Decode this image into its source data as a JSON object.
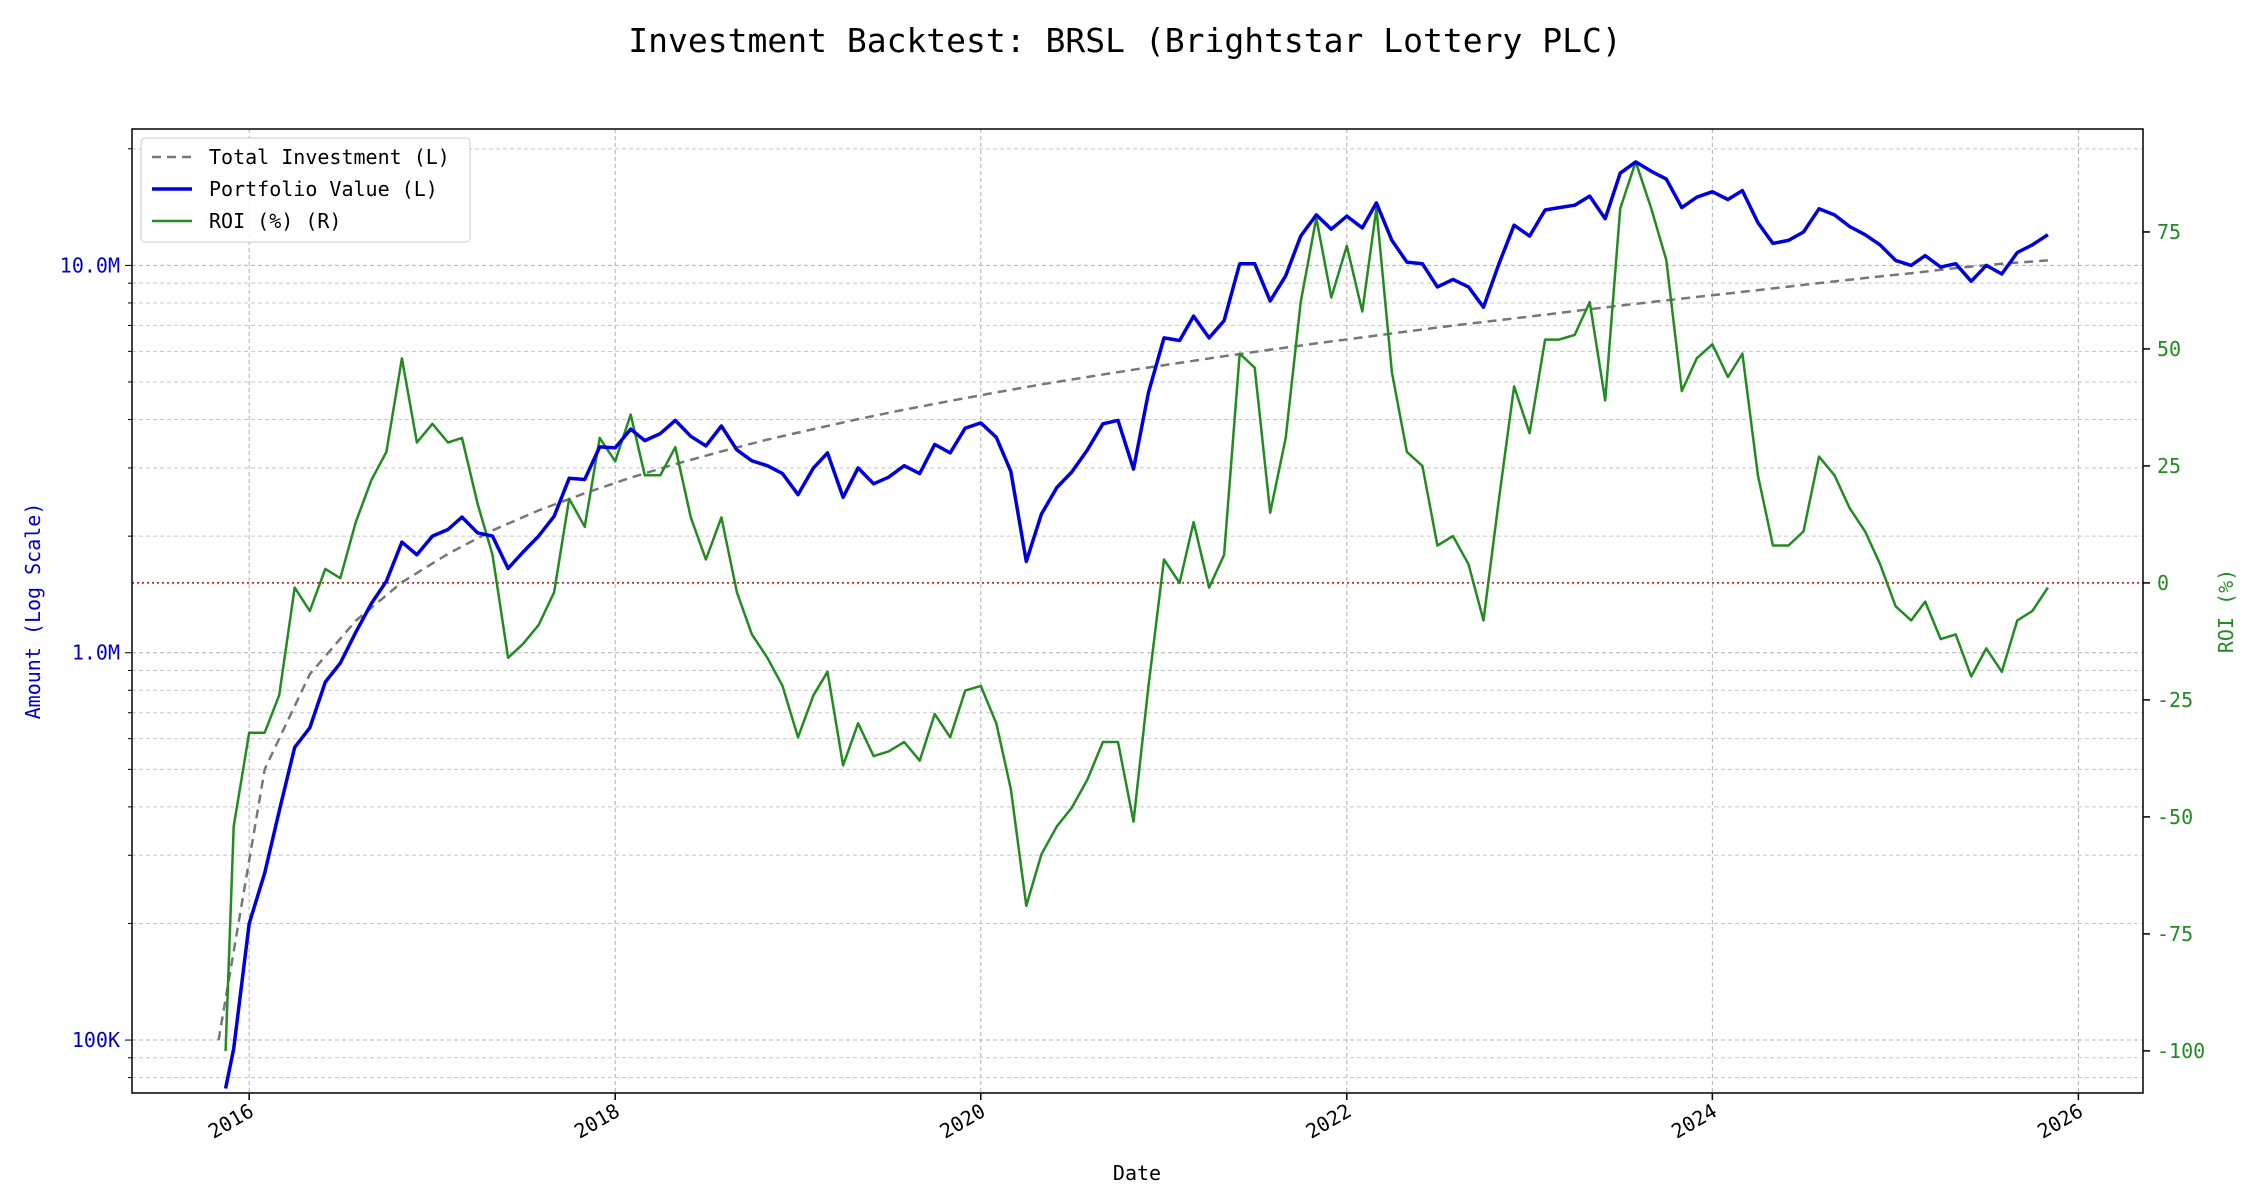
{
  "chart_data": {
    "type": "line",
    "title": "Investment Backtest: BRSL (Brightstar Lottery PLC)",
    "xlabel": "Date",
    "ylabel_left": "Amount (Log Scale)",
    "ylabel_right": "ROI (%)",
    "x_ticks": [
      "2016",
      "2018",
      "2020",
      "2022",
      "2024",
      "2026"
    ],
    "y_left_ticks": [
      {
        "value": 100000,
        "label": "100K"
      },
      {
        "value": 1000000,
        "label": "1.0M"
      },
      {
        "value": 10000000,
        "label": "10.0M"
      }
    ],
    "y_right_ticks": [
      -100,
      -75,
      -50,
      -25,
      0,
      25,
      50,
      75
    ],
    "x_range": [
      "2015-05-12",
      "2026-05-10"
    ],
    "y_left_range": [
      73000,
      22500000
    ],
    "y_left_scale": "log",
    "y_right_range": [
      -109,
      97
    ],
    "grid": true,
    "legend_position": "top-left",
    "reference_line": {
      "axis": "right",
      "value": 0,
      "color": "#cc0000",
      "style": "dotted"
    },
    "series": [
      {
        "name": "Total Investment (L)",
        "axis": "left",
        "color": "#777777",
        "style": "dashed",
        "x": [
          "2015-11-01",
          "2016-02-01",
          "2016-05-01",
          "2016-08-01",
          "2016-11-01",
          "2017-02-01",
          "2017-05-01",
          "2017-08-01",
          "2017-11-01",
          "2018-02-01",
          "2018-05-01",
          "2018-08-01",
          "2018-11-01",
          "2019-02-01",
          "2019-05-01",
          "2019-08-01",
          "2019-11-01",
          "2020-02-01",
          "2020-05-01",
          "2020-08-01",
          "2020-11-01",
          "2021-02-01",
          "2021-05-01",
          "2021-08-01",
          "2021-11-01",
          "2022-02-01",
          "2022-05-01",
          "2022-08-01",
          "2022-11-01",
          "2023-02-01",
          "2023-05-01",
          "2023-08-01",
          "2023-11-01",
          "2024-02-01",
          "2024-05-01",
          "2024-08-01",
          "2024-11-01",
          "2025-02-01",
          "2025-05-01",
          "2025-08-01",
          "2025-11-01"
        ],
        "values": [
          100000,
          500000,
          880000,
          1210000,
          1520000,
          1800000,
          2070000,
          2330000,
          2580000,
          2830000,
          3070000,
          3310000,
          3550000,
          3780000,
          4010000,
          4240000,
          4470000,
          4700000,
          4930000,
          5150000,
          5380000,
          5600000,
          5830000,
          6060000,
          6290000,
          6520000,
          6750000,
          6990000,
          7220000,
          7460000,
          7710000,
          7960000,
          8210000,
          8460000,
          8720000,
          9000000,
          9280000,
          9550000,
          9840000,
          10100000,
          10300000
        ]
      },
      {
        "name": "Portfolio Value (L)",
        "axis": "left",
        "color": "#0000dd",
        "style": "solid",
        "x": [
          "2015-11-15",
          "2015-12-01",
          "2016-01-01",
          "2016-02-01",
          "2016-03-01",
          "2016-04-01",
          "2016-05-01",
          "2016-06-01",
          "2016-07-01",
          "2016-08-01",
          "2016-09-01",
          "2016-10-01",
          "2016-11-01",
          "2016-12-01",
          "2017-01-01",
          "2017-02-01",
          "2017-03-01",
          "2017-04-01",
          "2017-05-01",
          "2017-06-01",
          "2017-07-01",
          "2017-08-01",
          "2017-09-01",
          "2017-10-01",
          "2017-11-01",
          "2017-12-01",
          "2018-01-01",
          "2018-02-01",
          "2018-03-01",
          "2018-04-01",
          "2018-05-01",
          "2018-06-01",
          "2018-07-01",
          "2018-08-01",
          "2018-09-01",
          "2018-10-01",
          "2018-11-01",
          "2018-12-01",
          "2019-01-01",
          "2019-02-01",
          "2019-03-01",
          "2019-04-01",
          "2019-05-01",
          "2019-06-01",
          "2019-07-01",
          "2019-08-01",
          "2019-09-01",
          "2019-10-01",
          "2019-11-01",
          "2019-12-01",
          "2020-01-01",
          "2020-02-01",
          "2020-03-01",
          "2020-04-01",
          "2020-05-01",
          "2020-06-01",
          "2020-07-01",
          "2020-08-01",
          "2020-09-01",
          "2020-10-01",
          "2020-11-01",
          "2020-12-01",
          "2021-01-01",
          "2021-02-01",
          "2021-03-01",
          "2021-04-01",
          "2021-05-01",
          "2021-06-01",
          "2021-07-01",
          "2021-08-01",
          "2021-09-01",
          "2021-10-01",
          "2021-11-01",
          "2021-12-01",
          "2022-01-01",
          "2022-02-01",
          "2022-03-01",
          "2022-04-01",
          "2022-05-01",
          "2022-06-01",
          "2022-07-01",
          "2022-08-01",
          "2022-09-01",
          "2022-10-01",
          "2022-11-01",
          "2022-12-01",
          "2023-01-01",
          "2023-02-01",
          "2023-03-01",
          "2023-04-01",
          "2023-05-01",
          "2023-06-01",
          "2023-07-01",
          "2023-08-01",
          "2023-09-01",
          "2023-10-01",
          "2023-11-01",
          "2023-12-01",
          "2024-01-01",
          "2024-02-01",
          "2024-03-01",
          "2024-04-01",
          "2024-05-01",
          "2024-06-01",
          "2024-07-01",
          "2024-08-01",
          "2024-09-01",
          "2024-10-01",
          "2024-11-01",
          "2024-12-01",
          "2025-01-01",
          "2025-02-01",
          "2025-03-01",
          "2025-04-01",
          "2025-05-01",
          "2025-06-01",
          "2025-07-01",
          "2025-08-01",
          "2025-09-01",
          "2025-10-01",
          "2025-11-01"
        ],
        "values": [
          75000,
          95000,
          200000,
          270000,
          390000,
          570000,
          640000,
          840000,
          940000,
          1130000,
          1340000,
          1530000,
          1930000,
          1790000,
          2000000,
          2080000,
          2240000,
          2040000,
          2000000,
          1650000,
          1820000,
          2000000,
          2250000,
          2820000,
          2800000,
          3400000,
          3380000,
          3780000,
          3530000,
          3680000,
          3980000,
          3620000,
          3420000,
          3850000,
          3340000,
          3130000,
          3040000,
          2900000,
          2560000,
          3000000,
          3280000,
          2520000,
          3000000,
          2730000,
          2840000,
          3040000,
          2900000,
          3450000,
          3280000,
          3800000,
          3920000,
          3600000,
          2940000,
          1720000,
          2280000,
          2670000,
          2930000,
          3340000,
          3900000,
          3980000,
          2980000,
          4700000,
          6500000,
          6400000,
          7400000,
          6500000,
          7200000,
          10100000,
          10100000,
          8100000,
          9400000,
          11900000,
          13500000,
          12400000,
          13400000,
          12500000,
          14500000,
          11600000,
          10200000,
          10100000,
          8800000,
          9200000,
          8800000,
          7800000,
          10100000,
          12700000,
          11900000,
          13900000,
          14100000,
          14300000,
          15100000,
          13200000,
          17300000,
          18500000,
          17500000,
          16700000,
          14100000,
          15000000,
          15500000,
          14800000,
          15600000,
          12900000,
          11400000,
          11600000,
          12200000,
          14000000,
          13500000,
          12600000,
          12000000,
          11300000,
          10300000,
          10000000,
          10600000,
          9900000,
          10100000,
          9100000,
          10000000,
          9500000,
          10800000,
          11300000,
          12000000
        ]
      },
      {
        "name": "ROI (%) (R)",
        "axis": "right",
        "color": "#228B22",
        "style": "solid",
        "x": [
          "2015-11-15",
          "2015-12-01",
          "2016-01-01",
          "2016-02-01",
          "2016-03-01",
          "2016-04-01",
          "2016-05-01",
          "2016-06-01",
          "2016-07-01",
          "2016-08-01",
          "2016-09-01",
          "2016-10-01",
          "2016-11-01",
          "2016-12-01",
          "2017-01-01",
          "2017-02-01",
          "2017-03-01",
          "2017-04-01",
          "2017-05-01",
          "2017-06-01",
          "2017-07-01",
          "2017-08-01",
          "2017-09-01",
          "2017-10-01",
          "2017-11-01",
          "2017-12-01",
          "2018-01-01",
          "2018-02-01",
          "2018-03-01",
          "2018-04-01",
          "2018-05-01",
          "2018-06-01",
          "2018-07-01",
          "2018-08-01",
          "2018-09-01",
          "2018-10-01",
          "2018-11-01",
          "2018-12-01",
          "2019-01-01",
          "2019-02-01",
          "2019-03-01",
          "2019-04-01",
          "2019-05-01",
          "2019-06-01",
          "2019-07-01",
          "2019-08-01",
          "2019-09-01",
          "2019-10-01",
          "2019-11-01",
          "2019-12-01",
          "2020-01-01",
          "2020-02-01",
          "2020-03-01",
          "2020-04-01",
          "2020-05-01",
          "2020-06-01",
          "2020-07-01",
          "2020-08-01",
          "2020-09-01",
          "2020-10-01",
          "2020-11-01",
          "2020-12-01",
          "2021-01-01",
          "2021-02-01",
          "2021-03-01",
          "2021-04-01",
          "2021-05-01",
          "2021-06-01",
          "2021-07-01",
          "2021-08-01",
          "2021-09-01",
          "2021-10-01",
          "2021-11-01",
          "2021-12-01",
          "2022-01-01",
          "2022-02-01",
          "2022-03-01",
          "2022-04-01",
          "2022-05-01",
          "2022-06-01",
          "2022-07-01",
          "2022-08-01",
          "2022-09-01",
          "2022-10-01",
          "2022-11-01",
          "2022-12-01",
          "2023-01-01",
          "2023-02-01",
          "2023-03-01",
          "2023-04-01",
          "2023-05-01",
          "2023-06-01",
          "2023-07-01",
          "2023-08-01",
          "2023-09-01",
          "2023-10-01",
          "2023-11-01",
          "2023-12-01",
          "2024-01-01",
          "2024-02-01",
          "2024-03-01",
          "2024-04-01",
          "2024-05-01",
          "2024-06-01",
          "2024-07-01",
          "2024-08-01",
          "2024-09-01",
          "2024-10-01",
          "2024-11-01",
          "2024-12-01",
          "2025-01-01",
          "2025-02-01",
          "2025-03-01",
          "2025-04-01",
          "2025-05-01",
          "2025-06-01",
          "2025-07-01",
          "2025-08-01",
          "2025-09-01",
          "2025-10-01",
          "2025-11-01"
        ],
        "values": [
          -100,
          -52,
          -32,
          -32,
          -24,
          -1,
          -6,
          3,
          1,
          13,
          22,
          28,
          48,
          30,
          34,
          30,
          31,
          17,
          6,
          -16,
          -13,
          -9,
          -2,
          18,
          12,
          31,
          26,
          36,
          23,
          23,
          29,
          14,
          5,
          14,
          -2,
          -11,
          -16,
          -22,
          -33,
          -24,
          -19,
          -39,
          -30,
          -37,
          -36,
          -34,
          -38,
          -28,
          -33,
          -23,
          -22,
          -30,
          -44,
          -69,
          -58,
          -52,
          -48,
          -42,
          -34,
          -34,
          -51,
          -22,
          5,
          0,
          13,
          -1,
          6,
          49,
          46,
          15,
          31,
          60,
          78,
          61,
          72,
          58,
          80,
          45,
          28,
          25,
          8,
          10,
          4,
          -8,
          18,
          42,
          32,
          52,
          52,
          53,
          60,
          39,
          80,
          90,
          80,
          69,
          41,
          48,
          51,
          44,
          49,
          23,
          8,
          8,
          11,
          27,
          23,
          16,
          11,
          4,
          -5,
          -8,
          -4,
          -12,
          -11,
          -20,
          -14,
          -19,
          -8,
          -6,
          -1
        ]
      }
    ]
  }
}
